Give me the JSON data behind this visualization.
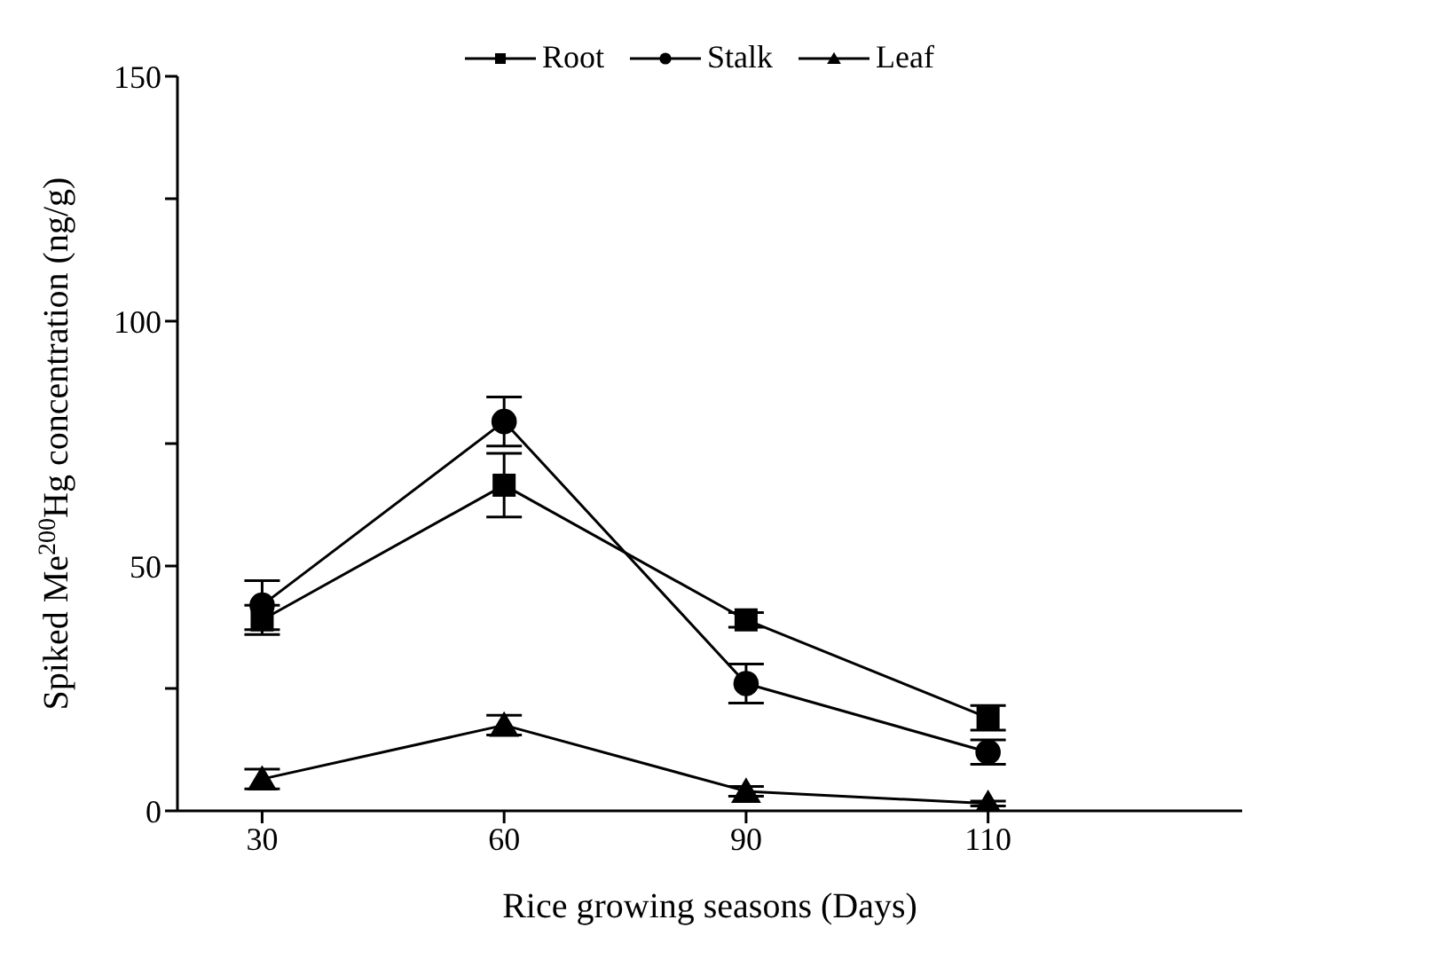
{
  "chart_data": {
    "type": "line",
    "xlabel": "Rice growing seasons (Days)",
    "ylabel": "Spiked Me$^{200}$Hg concentration (ng/g)",
    "categories": [
      "30",
      "60",
      "90",
      "110"
    ],
    "ylim": [
      0,
      150
    ],
    "yticks": [
      0,
      {
        "value": 25,
        "label": null
      },
      50,
      {
        "value": 75,
        "label": null
      },
      100,
      {
        "value": 125,
        "label": null
      },
      150
    ],
    "legend": "top",
    "grid": false,
    "series": [
      {
        "name": "Root",
        "color": "#000000",
        "marker": "square",
        "values": [
          39,
          66.5,
          39,
          19
        ],
        "errors": [
          3,
          6.5,
          1.5,
          2.5
        ]
      },
      {
        "name": "Stalk",
        "color": "#000000",
        "marker": "circle",
        "values": [
          42,
          79.5,
          26,
          12
        ],
        "errors": [
          5,
          5,
          4,
          2.5
        ]
      },
      {
        "name": "Leaf",
        "color": "#000000",
        "marker": "triangle",
        "values": [
          6.5,
          17.5,
          4,
          1.5
        ],
        "errors": [
          2,
          2,
          1,
          0.5
        ]
      }
    ]
  }
}
